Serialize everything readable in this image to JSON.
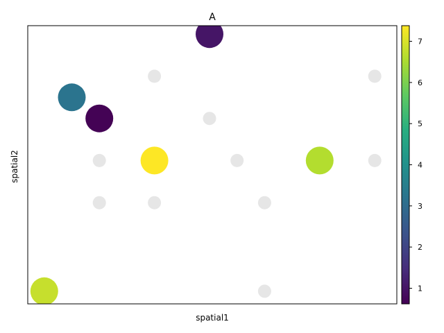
{
  "chart_data": {
    "type": "scatter",
    "title": "A",
    "xlabel": "spatial1",
    "ylabel": "spatial2",
    "xlim": [
      0.5,
      13.9
    ],
    "ylim": [
      -0.3,
      6.3
    ],
    "colorbar": {
      "colormap": "viridis",
      "range": [
        0.62,
        7.38
      ],
      "ticks": [
        "1",
        "2",
        "3",
        "4",
        "5",
        "6",
        "7"
      ]
    },
    "missing_color": "#e6e6e6",
    "points": [
      {
        "x": 1.1,
        "y": 0.0,
        "value": 6.8
      },
      {
        "x": 2.1,
        "y": 4.6,
        "value": 3.2
      },
      {
        "x": 3.1,
        "y": 4.1,
        "value": 0.65
      },
      {
        "x": 5.1,
        "y": 3.1,
        "value": 7.38
      },
      {
        "x": 7.1,
        "y": 6.1,
        "value": 1.0
      },
      {
        "x": 11.1,
        "y": 3.1,
        "value": 6.6
      },
      {
        "x": 3.1,
        "y": 3.1,
        "value": null
      },
      {
        "x": 3.1,
        "y": 2.1,
        "value": null
      },
      {
        "x": 5.1,
        "y": 5.1,
        "value": null
      },
      {
        "x": 5.1,
        "y": 2.1,
        "value": null
      },
      {
        "x": 7.1,
        "y": 4.1,
        "value": null
      },
      {
        "x": 8.1,
        "y": 3.1,
        "value": null
      },
      {
        "x": 9.1,
        "y": 2.1,
        "value": null
      },
      {
        "x": 9.1,
        "y": 0.0,
        "value": null
      },
      {
        "x": 13.1,
        "y": 5.1,
        "value": null
      },
      {
        "x": 13.1,
        "y": 3.1,
        "value": null
      }
    ]
  }
}
